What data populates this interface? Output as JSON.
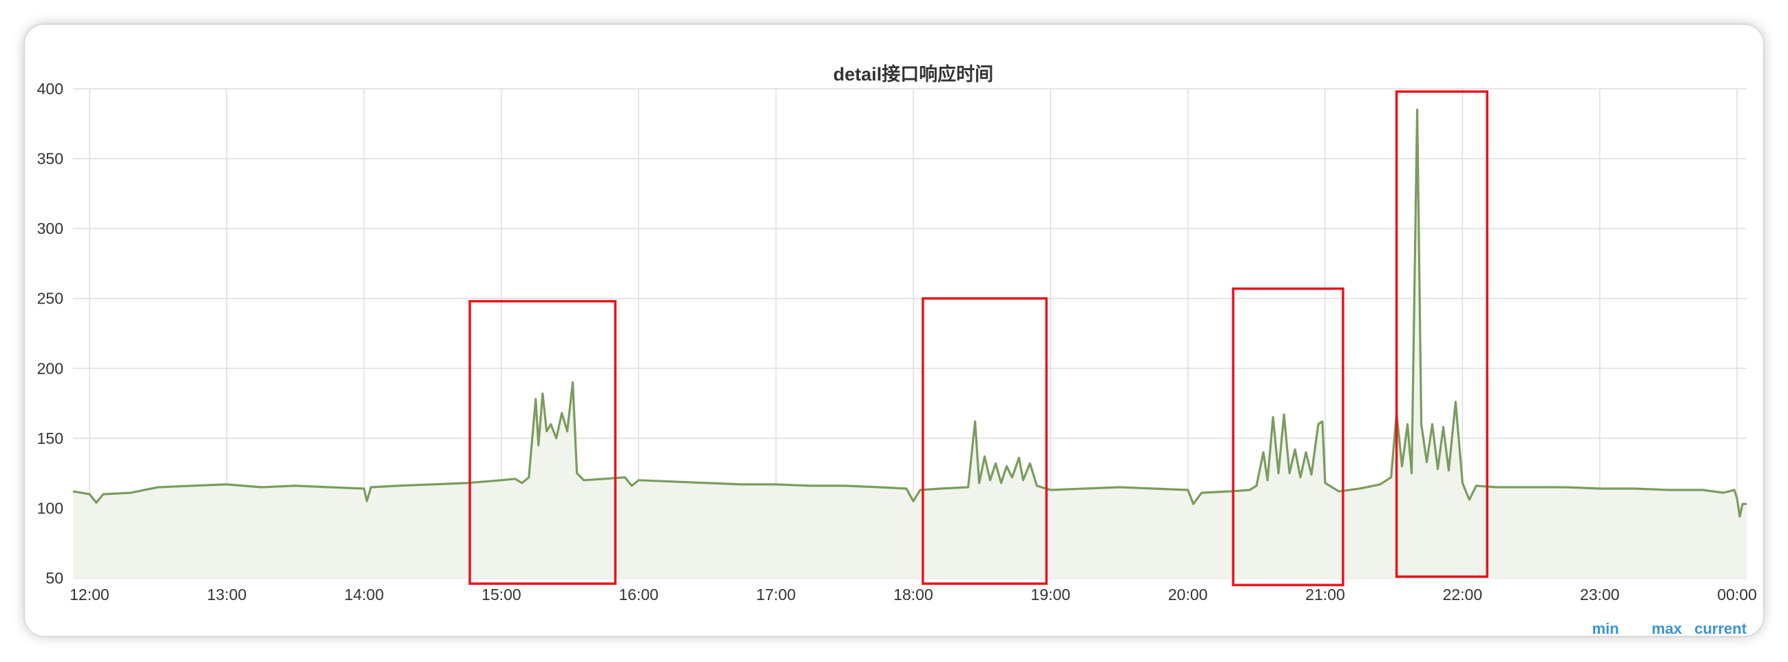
{
  "chart_data": {
    "type": "area",
    "title": "detail接口响应时间",
    "xlabel": "",
    "ylabel": "",
    "x_ticks": [
      "12:00",
      "13:00",
      "14:00",
      "15:00",
      "16:00",
      "17:00",
      "18:00",
      "19:00",
      "20:00",
      "21:00",
      "22:00",
      "23:00",
      "00:00"
    ],
    "y_ticks": [
      50,
      100,
      150,
      200,
      250,
      300,
      350,
      400
    ],
    "ylim": [
      50,
      400
    ],
    "x_range_hours": [
      11.88,
      24.07
    ],
    "grid": true,
    "legend_placement": "bottom-right",
    "legend": [
      "min",
      "max",
      "current"
    ],
    "colors": {
      "line": "#7a9c5e",
      "fill": "#f1f4ec",
      "grid": "#dedede",
      "highlight_box": "#e8141c",
      "legend_text": "#3b93d6",
      "text": "#333333"
    },
    "series": [
      {
        "points": [
          [
            11.88,
            112
          ],
          [
            12.0,
            110
          ],
          [
            12.05,
            104
          ],
          [
            12.1,
            110
          ],
          [
            12.3,
            111
          ],
          [
            12.5,
            115
          ],
          [
            12.75,
            116
          ],
          [
            13.0,
            117
          ],
          [
            13.25,
            115
          ],
          [
            13.5,
            116
          ],
          [
            13.75,
            115
          ],
          [
            14.0,
            114
          ],
          [
            14.02,
            105
          ],
          [
            14.05,
            115
          ],
          [
            14.25,
            116
          ],
          [
            14.5,
            117
          ],
          [
            14.75,
            118
          ],
          [
            15.0,
            120
          ],
          [
            15.1,
            121
          ],
          [
            15.15,
            118
          ],
          [
            15.2,
            122
          ],
          [
            15.25,
            178
          ],
          [
            15.27,
            145
          ],
          [
            15.3,
            182
          ],
          [
            15.33,
            155
          ],
          [
            15.36,
            160
          ],
          [
            15.4,
            150
          ],
          [
            15.44,
            168
          ],
          [
            15.48,
            155
          ],
          [
            15.52,
            190
          ],
          [
            15.55,
            125
          ],
          [
            15.6,
            120
          ],
          [
            15.75,
            121
          ],
          [
            15.9,
            122
          ],
          [
            15.95,
            116
          ],
          [
            16.0,
            120
          ],
          [
            16.25,
            119
          ],
          [
            16.5,
            118
          ],
          [
            16.75,
            117
          ],
          [
            17.0,
            117
          ],
          [
            17.25,
            116
          ],
          [
            17.5,
            116
          ],
          [
            17.75,
            115
          ],
          [
            17.95,
            114
          ],
          [
            18.0,
            105
          ],
          [
            18.05,
            113
          ],
          [
            18.2,
            114
          ],
          [
            18.4,
            115
          ],
          [
            18.45,
            162
          ],
          [
            18.48,
            118
          ],
          [
            18.52,
            137
          ],
          [
            18.56,
            120
          ],
          [
            18.6,
            132
          ],
          [
            18.64,
            118
          ],
          [
            18.68,
            130
          ],
          [
            18.72,
            122
          ],
          [
            18.77,
            136
          ],
          [
            18.8,
            120
          ],
          [
            18.85,
            132
          ],
          [
            18.9,
            116
          ],
          [
            19.0,
            113
          ],
          [
            19.25,
            114
          ],
          [
            19.5,
            115
          ],
          [
            19.75,
            114
          ],
          [
            20.0,
            113
          ],
          [
            20.04,
            103
          ],
          [
            20.1,
            111
          ],
          [
            20.3,
            112
          ],
          [
            20.45,
            113
          ],
          [
            20.5,
            116
          ],
          [
            20.55,
            140
          ],
          [
            20.58,
            120
          ],
          [
            20.62,
            165
          ],
          [
            20.66,
            125
          ],
          [
            20.7,
            167
          ],
          [
            20.74,
            125
          ],
          [
            20.78,
            142
          ],
          [
            20.82,
            122
          ],
          [
            20.86,
            140
          ],
          [
            20.9,
            124
          ],
          [
            20.95,
            160
          ],
          [
            20.98,
            162
          ],
          [
            21.0,
            118
          ],
          [
            21.1,
            112
          ],
          [
            21.25,
            114
          ],
          [
            21.4,
            117
          ],
          [
            21.48,
            122
          ],
          [
            21.52,
            168
          ],
          [
            21.56,
            130
          ],
          [
            21.6,
            160
          ],
          [
            21.63,
            125
          ],
          [
            21.67,
            385
          ],
          [
            21.7,
            160
          ],
          [
            21.74,
            133
          ],
          [
            21.78,
            160
          ],
          [
            21.82,
            128
          ],
          [
            21.86,
            158
          ],
          [
            21.9,
            127
          ],
          [
            21.95,
            176
          ],
          [
            22.0,
            118
          ],
          [
            22.05,
            106
          ],
          [
            22.1,
            116
          ],
          [
            22.25,
            115
          ],
          [
            22.5,
            115
          ],
          [
            22.75,
            115
          ],
          [
            23.0,
            114
          ],
          [
            23.25,
            114
          ],
          [
            23.5,
            113
          ],
          [
            23.75,
            113
          ],
          [
            23.9,
            111
          ],
          [
            23.98,
            113
          ],
          [
            24.0,
            107
          ],
          [
            24.02,
            94
          ],
          [
            24.04,
            103
          ],
          [
            24.07,
            103
          ]
        ]
      }
    ],
    "highlight_ranges": [
      {
        "x": [
          14.77,
          15.83
        ],
        "y": [
          46,
          248
        ]
      },
      {
        "x": [
          18.07,
          18.97
        ],
        "y": [
          46,
          250
        ]
      },
      {
        "x": [
          20.33,
          21.13
        ],
        "y": [
          45,
          257
        ]
      },
      {
        "x": [
          21.52,
          22.18
        ],
        "y": [
          51,
          398
        ]
      }
    ]
  }
}
